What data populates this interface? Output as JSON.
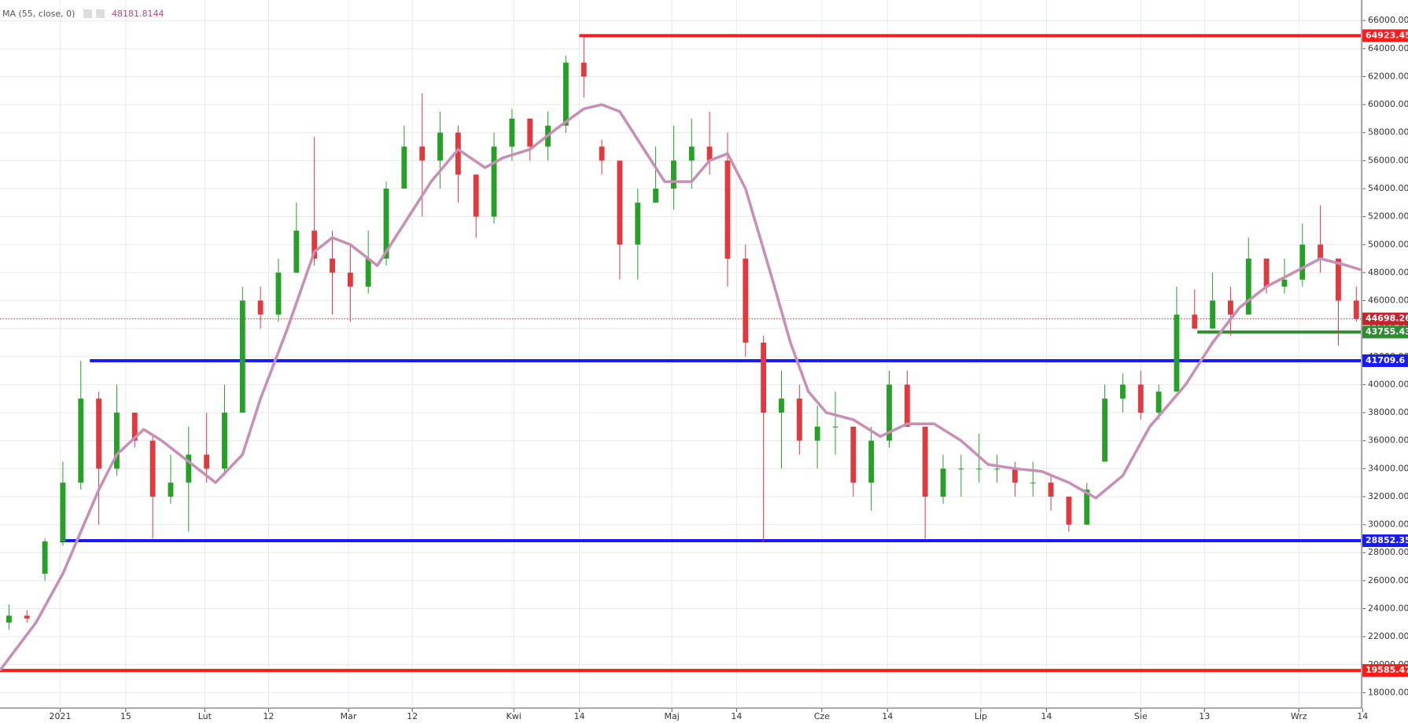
{
  "chart_data": {
    "type": "candlestick",
    "indicator": {
      "label": "MA (55, close, 0)",
      "last_value": 48181.8144,
      "color": "#c78fb4",
      "x": [
        0,
        2,
        3.5,
        4.5,
        5.5,
        6.5,
        8,
        9,
        10.5,
        12,
        13.5,
        14.5,
        16,
        17.5,
        18.5,
        19.5,
        21,
        22.5,
        24,
        25.5,
        27,
        28,
        29.5,
        31,
        32.5,
        33.5,
        34.5,
        36,
        37,
        38.5,
        39.5,
        40.5,
        41.5,
        43,
        44,
        45,
        46,
        47.5,
        49,
        50.5,
        52,
        53.5,
        55,
        56.5,
        58,
        59.5,
        61,
        62.5,
        64,
        65,
        66,
        67.5,
        69,
        70.5,
        72,
        73.5,
        75,
        75.75
      ],
      "values": [
        19600,
        23000,
        26500,
        29500,
        32500,
        35000,
        36800,
        36000,
        34500,
        33000,
        35000,
        39000,
        44000,
        49500,
        50500,
        50000,
        48500,
        51500,
        54500,
        56800,
        55500,
        56200,
        56800,
        58300,
        59700,
        60000,
        59500,
        56500,
        54500,
        54500,
        56000,
        56500,
        54000,
        47500,
        43000,
        39500,
        38000,
        37500,
        36300,
        37200,
        37200,
        36000,
        34300,
        34000,
        33800,
        33000,
        31900,
        33500,
        37000,
        38500,
        40000,
        43000,
        45500,
        47000,
        48000,
        49000,
        48500,
        48200
      ]
    },
    "up_color": "#26a026",
    "down_color": "#e0393e",
    "candles": {
      "open": [
        23000,
        23500,
        26500,
        28800,
        33000,
        39000,
        34000,
        38000,
        36000,
        32000,
        33000,
        35000,
        34000,
        38000,
        46000,
        45000,
        48000,
        51000,
        49000,
        48000,
        47000,
        49000,
        54000,
        57000,
        56000,
        58000,
        55000,
        52000,
        57000,
        59000,
        57000,
        58500,
        63000,
        57000,
        56000,
        50000,
        53000,
        54000,
        56000,
        57000,
        56000,
        49000,
        43000,
        38000,
        39000,
        36000,
        37000,
        37000,
        33000,
        36000,
        40000,
        37000,
        32000,
        34000,
        34000,
        34000,
        34000,
        33000,
        33000,
        32000,
        30000,
        34500,
        39000,
        40000,
        38000,
        39500,
        45000,
        44000,
        46000,
        45000,
        49000,
        47000,
        47500,
        50000,
        49000,
        46000
      ],
      "high": [
        24300,
        23900,
        29000,
        34500,
        41700,
        39500,
        40000,
        38000,
        36500,
        35000,
        37000,
        38000,
        40000,
        47000,
        47000,
        49000,
        53000,
        57700,
        51000,
        50000,
        51000,
        54500,
        58500,
        60800,
        59500,
        58500,
        55000,
        58000,
        59700,
        59000,
        59500,
        63500,
        64900,
        57500,
        56000,
        54000,
        57000,
        58500,
        59000,
        59500,
        58000,
        50000,
        43500,
        41000,
        40000,
        38500,
        39500,
        37000,
        37000,
        41000,
        41000,
        37000,
        35000,
        35000,
        36500,
        35000,
        34500,
        34500,
        33500,
        32000,
        33000,
        40000,
        40800,
        41000,
        40000,
        47000,
        46800,
        48000,
        47000,
        50500,
        49000,
        49000,
        51500,
        52800,
        48000,
        47000
      ],
      "low": [
        22500,
        23000,
        26000,
        28500,
        32500,
        30000,
        33500,
        35500,
        29000,
        31500,
        29500,
        33000,
        33500,
        38000,
        44000,
        44500,
        48000,
        48500,
        45000,
        44500,
        46500,
        48500,
        54000,
        52000,
        54000,
        53000,
        50500,
        51500,
        56000,
        56000,
        56000,
        58000,
        60500,
        55000,
        47500,
        47500,
        53000,
        52500,
        54000,
        55000,
        47000,
        42000,
        28800,
        34000,
        35000,
        34000,
        35000,
        32000,
        31000,
        35500,
        37000,
        29000,
        31500,
        32000,
        33000,
        33000,
        32000,
        32000,
        31000,
        29500,
        30000,
        34500,
        38000,
        37500,
        37500,
        39500,
        44000,
        44000,
        43500,
        45000,
        46500,
        46500,
        47000,
        48000,
        42800,
        44500
      ],
      "close": [
        23500,
        23300,
        28800,
        33000,
        39000,
        34000,
        38000,
        36000,
        32000,
        33000,
        35000,
        34000,
        38000,
        46000,
        45000,
        48000,
        51000,
        49000,
        48000,
        47000,
        49000,
        54000,
        57000,
        56000,
        58000,
        55000,
        52000,
        57000,
        59000,
        57000,
        58500,
        63000,
        62000,
        56000,
        50000,
        53000,
        54000,
        56000,
        57000,
        56000,
        49000,
        43000,
        38000,
        39000,
        36000,
        37000,
        37000,
        33000,
        36000,
        40000,
        37000,
        32000,
        34000,
        34000,
        34000,
        34000,
        33000,
        33000,
        32000,
        30000,
        32500,
        39000,
        40000,
        38000,
        39500,
        45000,
        44000,
        46000,
        45000,
        49000,
        47000,
        47500,
        50000,
        49000,
        46000,
        44700
      ]
    },
    "levels": [
      {
        "value": 64923.45,
        "color": "#ff1a1a",
        "start": 32.25,
        "style": "solid"
      },
      {
        "value": 19585.47,
        "color": "#ff1a1a",
        "start": 0,
        "style": "solid"
      },
      {
        "value": 41709.6,
        "color": "#1a1aff",
        "start": 5,
        "style": "solid"
      },
      {
        "value": 28852.35,
        "color": "#1a1aff",
        "start": 3.35,
        "style": "solid"
      },
      {
        "value": 43755.43,
        "color": "#2e8b2e",
        "start": 66.65,
        "style": "solid"
      },
      {
        "value": 44698.26,
        "color": "#c0262d",
        "start": 0,
        "style": "dotted"
      }
    ],
    "xlim": [
      0,
      75.75
    ],
    "ylim": [
      16900,
      67470
    ],
    "xticks": [
      {
        "value": 3.35,
        "label": "2021"
      },
      {
        "value": 7,
        "label": "15"
      },
      {
        "value": 11.4,
        "label": "Lut"
      },
      {
        "value": 14.95,
        "label": "12"
      },
      {
        "value": 19.4,
        "label": "Mar"
      },
      {
        "value": 22.95,
        "label": "12"
      },
      {
        "value": 28.6,
        "label": "Kwi"
      },
      {
        "value": 32.25,
        "label": "14"
      },
      {
        "value": 37.4,
        "label": "Maj"
      },
      {
        "value": 41,
        "label": "14"
      },
      {
        "value": 45.75,
        "label": "Cze"
      },
      {
        "value": 49.4,
        "label": "14"
      },
      {
        "value": 54.6,
        "label": "Lip"
      },
      {
        "value": 58.25,
        "label": "14"
      },
      {
        "value": 63.5,
        "label": "Sie"
      },
      {
        "value": 67.05,
        "label": "13"
      },
      {
        "value": 72.3,
        "label": "Wrz"
      },
      {
        "value": 75.85,
        "label": "14"
      }
    ],
    "yticks": [
      {
        "value": 18000,
        "label": "18000.00"
      },
      {
        "value": 20000,
        "label": "20000.00"
      },
      {
        "value": 22000,
        "label": "22000.00"
      },
      {
        "value": 24000,
        "label": "24000.00"
      },
      {
        "value": 26000,
        "label": "26000.00"
      },
      {
        "value": 28000,
        "label": "28000.00"
      },
      {
        "value": 30000,
        "label": "30000.00"
      },
      {
        "value": 32000,
        "label": "32000.00"
      },
      {
        "value": 34000,
        "label": "34000.00"
      },
      {
        "value": 36000,
        "label": "36000.00"
      },
      {
        "value": 38000,
        "label": "38000.00"
      },
      {
        "value": 40000,
        "label": "40000.00"
      },
      {
        "value": 42000,
        "label": "42000.00"
      },
      {
        "value": 44000,
        "label": "44000.00"
      },
      {
        "value": 46000,
        "label": "46000.00"
      },
      {
        "value": 48000,
        "label": "48000.00"
      },
      {
        "value": 50000,
        "label": "50000.00"
      },
      {
        "value": 52000,
        "label": "52000.00"
      },
      {
        "value": 54000,
        "label": "54000.00"
      },
      {
        "value": 56000,
        "label": "56000.00"
      },
      {
        "value": 58000,
        "label": "58000.00"
      },
      {
        "value": 60000,
        "label": "60000.00"
      },
      {
        "value": 62000,
        "label": "62000.00"
      },
      {
        "value": 64000,
        "label": "64000.00"
      },
      {
        "value": 66000,
        "label": "66000.00"
      }
    ],
    "grid": true
  }
}
